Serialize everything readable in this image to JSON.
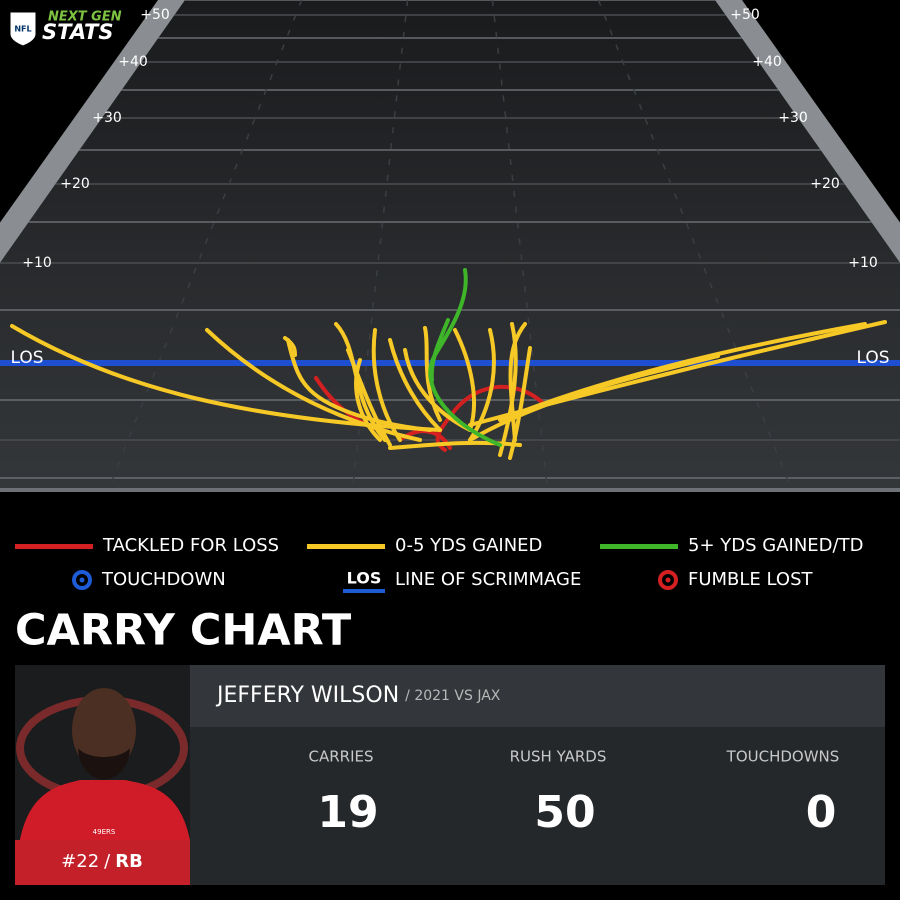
{
  "header": {
    "logo_badge": "NFL",
    "logo_line1": "NEXT GEN",
    "logo_line2": "STATS"
  },
  "field": {
    "yard_labels": [
      "+50",
      "+40",
      "+30",
      "+20",
      "+10",
      "LOS"
    ]
  },
  "legend": [
    {
      "label": "TACKLED FOR LOSS",
      "color": "#d42020"
    },
    {
      "label": "0-5 YDS GAINED",
      "color": "#f7c926"
    },
    {
      "label": "5+ YDS GAINED/TD",
      "color": "#3fb52a"
    },
    {
      "label": "TOUCHDOWN",
      "color": "#1e5bd6"
    },
    {
      "label": "LINE OF SCRIMMAGE",
      "color": "#1e5bd6",
      "badge": "LOS"
    },
    {
      "label": "FUMBLE LOST",
      "color": "#d42020"
    }
  ],
  "title": "CARRY CHART",
  "player": {
    "name": "JEFFERY WILSON",
    "context": "/ 2021 VS JAX",
    "number": "#22",
    "separator": "/",
    "position": "RB",
    "jersey_text": "49ERS"
  },
  "stats": [
    {
      "label": "CARRIES",
      "value": 19
    },
    {
      "label": "RUSH YARDS",
      "value": 50
    },
    {
      "label": "TOUCHDOWNS",
      "value": 0
    }
  ]
}
